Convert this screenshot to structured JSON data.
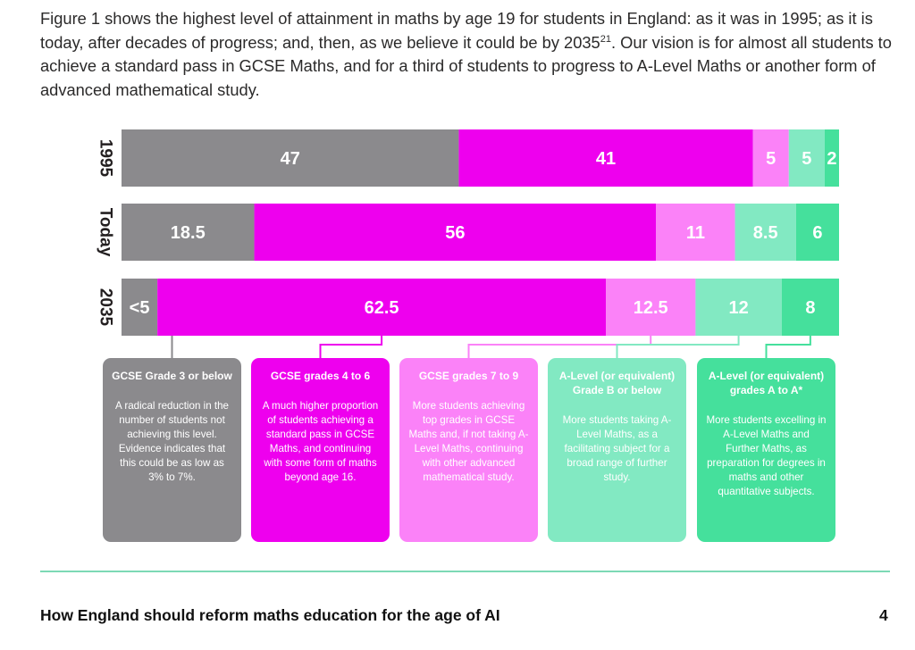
{
  "intro": {
    "text_before": "Figure 1 shows the highest level of attainment in maths by age 19 for students in England: as it was in 1995; as it is today, after decades of progress; and, then, as we believe it could be by 2035",
    "footnote": "21",
    "text_after": ". Our vision is for almost all students to achieve a standard pass in GCSE Maths, and for a third of students to progress to A-Level Maths or another form of advanced mathematical study."
  },
  "colors": {
    "grade3": "#8b8a8d",
    "grade4to6": "#ee00ee",
    "grade7to9": "#fb82f8",
    "alevelB": "#82e9c2",
    "alevelA": "#45e09c"
  },
  "chart_data": {
    "type": "bar",
    "orientation": "horizontal",
    "stacked": true,
    "categories": [
      "1995",
      "Today",
      "2035"
    ],
    "series": [
      {
        "key": "grade3",
        "values": [
          47,
          18.5,
          5
        ],
        "labels": [
          "47",
          "18.5",
          "<5"
        ]
      },
      {
        "key": "grade4to6",
        "values": [
          41,
          56,
          62.5
        ],
        "labels": [
          "41",
          "56",
          "62.5"
        ]
      },
      {
        "key": "grade7to9",
        "values": [
          5,
          11,
          12.5
        ],
        "labels": [
          "5",
          "11",
          "12.5"
        ]
      },
      {
        "key": "alevelB",
        "values": [
          5,
          8.5,
          12
        ],
        "labels": [
          "5",
          "8.5",
          "12"
        ]
      },
      {
        "key": "alevelA",
        "values": [
          2,
          6,
          8
        ],
        "labels": [
          "2",
          "6",
          "8"
        ]
      }
    ]
  },
  "legend": [
    {
      "key": "grade3",
      "title": "GCSE Grade 3 or below",
      "description": "A radical reduction in the number of students not achieving this level. Evidence indicates that this could be as low as 3% to 7%."
    },
    {
      "key": "grade4to6",
      "title": "GCSE grades 4 to 6",
      "description": "A much higher proportion of students achieving a standard pass in GCSE Maths, and continuing with some form of maths beyond age 16."
    },
    {
      "key": "grade7to9",
      "title": "GCSE grades 7 to 9",
      "description": "More students achieving top grades in GCSE Maths and, if not taking A-Level Maths, continuing with other advanced mathematical study."
    },
    {
      "key": "alevelB",
      "title": "A-Level (or equivalent) Grade B or below",
      "description": "More students taking A-Level Maths, as a facilitating subject for a broad range of further study."
    },
    {
      "key": "alevelA",
      "title": "A-Level (or equivalent) grades A to A*",
      "description": "More students excelling in A-Level Maths and Further Maths, as preparation for degrees in maths and other quantitative subjects."
    }
  ],
  "footer": {
    "title": "How England should reform maths education for the age of AI",
    "page": "4"
  }
}
